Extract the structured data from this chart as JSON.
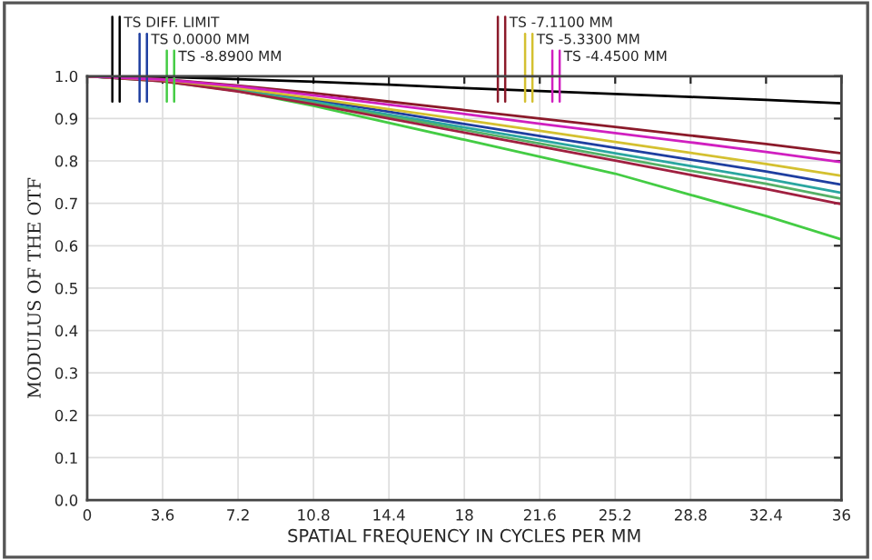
{
  "chart_data": {
    "type": "line",
    "xlabel": "SPATIAL FREQUENCY IN CYCLES PER MM",
    "ylabel": "MODULUS OF THE OTF",
    "x": [
      0,
      3.6,
      7.2,
      10.8,
      14.4,
      18,
      21.6,
      25.2,
      28.8,
      32.4,
      36
    ],
    "series": [
      {
        "name": "TS DIFF. LIMIT",
        "color": "#000000",
        "values": [
          1,
          0.998,
          0.993,
          0.987,
          0.98,
          0.972,
          0.965,
          0.958,
          0.951,
          0.944,
          0.936
        ]
      },
      {
        "name": "TS 0.0000 MM",
        "color": "#1f3fa0",
        "values": [
          1,
          0.99,
          0.969,
          0.944,
          0.916,
          0.887,
          0.859,
          0.831,
          0.803,
          0.775,
          0.744
        ]
      },
      {
        "color": "#2aa6a0",
        "values": [
          1,
          0.989,
          0.967,
          0.94,
          0.909,
          0.879,
          0.849,
          0.818,
          0.788,
          0.758,
          0.725
        ]
      },
      {
        "name": "TS -8.8900 MM",
        "color": "#44cc44",
        "values": [
          1,
          0.99,
          0.965,
          0.93,
          0.89,
          0.85,
          0.81,
          0.77,
          0.72,
          0.67,
          0.615
        ]
      },
      {
        "color": "#55b066",
        "values": [
          1,
          0.988,
          0.965,
          0.936,
          0.905,
          0.873,
          0.841,
          0.809,
          0.777,
          0.746,
          0.711
        ]
      },
      {
        "name": "TS -7.1100 MM",
        "color": "#8b1a2a",
        "values": [
          1,
          0.993,
          0.978,
          0.96,
          0.94,
          0.92,
          0.9,
          0.88,
          0.86,
          0.84,
          0.818
        ]
      },
      {
        "color": "#a02040",
        "values": [
          1,
          0.988,
          0.964,
          0.934,
          0.9,
          0.867,
          0.834,
          0.801,
          0.767,
          0.734,
          0.698
        ]
      },
      {
        "name": "TS -5.3300 MM",
        "color": "#d4c030",
        "values": [
          1,
          0.991,
          0.972,
          0.948,
          0.922,
          0.897,
          0.871,
          0.845,
          0.819,
          0.793,
          0.765
        ]
      },
      {
        "name": "TS -4.4500 MM",
        "color": "#d020c0",
        "values": [
          1,
          0.992,
          0.976,
          0.955,
          0.933,
          0.911,
          0.888,
          0.866,
          0.844,
          0.821,
          0.797
        ]
      }
    ],
    "xlim": [
      0,
      36
    ],
    "xticks": [
      0,
      3.6,
      7.2,
      10.8,
      14.4,
      18,
      21.6,
      25.2,
      28.8,
      32.4,
      36
    ],
    "ylim": [
      0,
      1
    ],
    "yticks": [
      {
        "value": 0,
        "label": "0.0"
      },
      0.1,
      0.2,
      0.3,
      0.4,
      0.5,
      0.6,
      0.7,
      0.8,
      0.9,
      {
        "value": 1,
        "label": "1.0"
      }
    ],
    "grid": true,
    "legend": "top",
    "line_style": "solid",
    "marker": "none"
  }
}
